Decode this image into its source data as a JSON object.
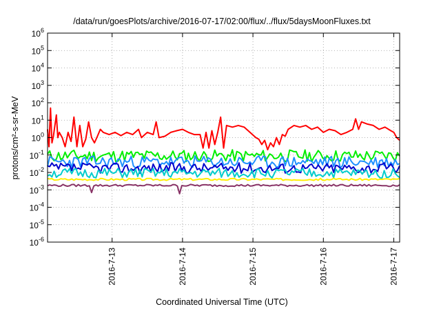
{
  "chart_data": {
    "type": "line",
    "title": "/data/run/goesPlots/archive/2016-07-17/02:00/flux/../flux/5daysMoonFluxes.txt",
    "xlabel": "Coordinated Universal Time (UTC)",
    "ylabel": "protons/cm²-s-sr-MeV",
    "x_start": "2016-07-12 02:00",
    "x_end": "2016-07-17 02:00",
    "x_ticks": [
      {
        "t": "2016-07-13 00:00",
        "label": "2016-7-13"
      },
      {
        "t": "2016-07-14 00:00",
        "label": "2016-7-14"
      },
      {
        "t": "2016-07-15 00:00",
        "label": "2016-7-15"
      },
      {
        "t": "2016-07-16 00:00",
        "label": "2016-7-16"
      },
      {
        "t": "2016-07-17 00:00",
        "label": "2016-7-17"
      }
    ],
    "y_scale": "log",
    "ylim": [
      1e-06,
      1000000
    ],
    "y_ticks": [
      {
        "base": "10",
        "exp": "-6",
        "value": 1e-06
      },
      {
        "base": "10",
        "exp": "-5",
        "value": 1e-05
      },
      {
        "base": "10",
        "exp": "-4",
        "value": 0.0001
      },
      {
        "base": "10",
        "exp": "-3",
        "value": 0.001
      },
      {
        "base": "10",
        "exp": "-2",
        "value": 0.01
      },
      {
        "base": "10",
        "exp": "-1",
        "value": 0.1
      },
      {
        "base": "10",
        "exp": "0",
        "value": 1
      },
      {
        "base": "10",
        "exp": "1",
        "value": 10
      },
      {
        "base": "10",
        "exp": "2",
        "value": 100
      },
      {
        "base": "10",
        "exp": "3",
        "value": 1000
      },
      {
        "base": "10",
        "exp": "4",
        "value": 10000
      },
      {
        "base": "10",
        "exp": "5",
        "value": 100000
      },
      {
        "base": "10",
        "exp": "6",
        "value": 1000000
      }
    ],
    "grid": true,
    "legend": "none",
    "series": [
      {
        "color": "#ff0000",
        "points": [
          [
            "2016-07-12 02:00",
            3.0
          ],
          [
            "2016-07-12 02:30",
            0.3
          ],
          [
            "2016-07-12 03:00",
            50
          ],
          [
            "2016-07-12 03:30",
            0.5
          ],
          [
            "2016-07-12 04:00",
            1.2
          ],
          [
            "2016-07-12 05:00",
            20
          ],
          [
            "2016-07-12 05:30",
            1.0
          ],
          [
            "2016-07-12 06:00",
            2.0
          ],
          [
            "2016-07-12 07:00",
            1.0
          ],
          [
            "2016-07-12 08:00",
            0.3
          ],
          [
            "2016-07-12 09:00",
            2.0
          ],
          [
            "2016-07-12 10:00",
            0.6
          ],
          [
            "2016-07-12 11:00",
            15
          ],
          [
            "2016-07-12 12:00",
            0.3
          ],
          [
            "2016-07-12 13:00",
            5
          ],
          [
            "2016-07-12 14:00",
            0.3
          ],
          [
            "2016-07-12 15:00",
            0.8
          ],
          [
            "2016-07-12 16:00",
            8
          ],
          [
            "2016-07-12 17:00",
            1.0
          ],
          [
            "2016-07-12 18:00",
            0.5
          ],
          [
            "2016-07-12 19:00",
            1.2
          ],
          [
            "2016-07-12 20:00",
            3.0
          ],
          [
            "2016-07-12 21:00",
            2.0
          ],
          [
            "2016-07-12 23:00",
            1.5
          ],
          [
            "2016-07-13 01:00",
            2.0
          ],
          [
            "2016-07-13 03:00",
            1.3
          ],
          [
            "2016-07-13 05:00",
            2.0
          ],
          [
            "2016-07-13 07:00",
            1.5
          ],
          [
            "2016-07-13 09:00",
            3.0
          ],
          [
            "2016-07-13 10:00",
            1.0
          ],
          [
            "2016-07-13 12:00",
            2.0
          ],
          [
            "2016-07-13 14:00",
            1.5
          ],
          [
            "2016-07-13 15:00",
            8
          ],
          [
            "2016-07-13 16:00",
            1.0
          ],
          [
            "2016-07-13 18:00",
            1.2
          ],
          [
            "2016-07-13 20:00",
            2.0
          ],
          [
            "2016-07-13 22:00",
            2.5
          ],
          [
            "2016-07-14 00:00",
            3.0
          ],
          [
            "2016-07-14 02:00",
            2.0
          ],
          [
            "2016-07-14 04:00",
            1.5
          ],
          [
            "2016-07-14 06:00",
            1.5
          ],
          [
            "2016-07-14 07:00",
            0.25
          ],
          [
            "2016-07-14 08:00",
            2.0
          ],
          [
            "2016-07-14 09:00",
            0.25
          ],
          [
            "2016-07-14 10:00",
            2.5
          ],
          [
            "2016-07-14 11:00",
            0.4
          ],
          [
            "2016-07-14 12:00",
            2.0
          ],
          [
            "2016-07-14 13:00",
            15
          ],
          [
            "2016-07-14 14:00",
            0.25
          ],
          [
            "2016-07-14 15:00",
            5
          ],
          [
            "2016-07-14 17:00",
            4.0
          ],
          [
            "2016-07-14 19:00",
            5.0
          ],
          [
            "2016-07-14 21:00",
            4.0
          ],
          [
            "2016-07-14 23:00",
            2.0
          ],
          [
            "2016-07-15 01:00",
            1.0
          ],
          [
            "2016-07-15 02:00",
            0.8
          ],
          [
            "2016-07-15 03:00",
            0.4
          ],
          [
            "2016-07-15 04:00",
            0.7
          ],
          [
            "2016-07-15 05:00",
            0.2
          ],
          [
            "2016-07-15 06:00",
            0.5
          ],
          [
            "2016-07-15 07:00",
            0.3
          ],
          [
            "2016-07-15 08:00",
            1.0
          ],
          [
            "2016-07-15 09:00",
            0.4
          ],
          [
            "2016-07-15 10:00",
            1.5
          ],
          [
            "2016-07-15 11:00",
            1.2
          ],
          [
            "2016-07-15 12:00",
            3.0
          ],
          [
            "2016-07-15 14:00",
            5.0
          ],
          [
            "2016-07-15 16:00",
            4.0
          ],
          [
            "2016-07-15 18:00",
            5.0
          ],
          [
            "2016-07-15 20:00",
            3.0
          ],
          [
            "2016-07-15 22:00",
            4.0
          ],
          [
            "2016-07-16 00:00",
            2.0
          ],
          [
            "2016-07-16 02:00",
            3.0
          ],
          [
            "2016-07-16 04:00",
            2.5
          ],
          [
            "2016-07-16 06:00",
            1.5
          ],
          [
            "2016-07-16 08:00",
            2.0
          ],
          [
            "2016-07-16 10:00",
            3.0
          ],
          [
            "2016-07-16 11:00",
            12
          ],
          [
            "2016-07-16 12:00",
            3.0
          ],
          [
            "2016-07-16 13:00",
            8
          ],
          [
            "2016-07-16 15:00",
            6.0
          ],
          [
            "2016-07-16 17:00",
            5.0
          ],
          [
            "2016-07-16 19:00",
            3.0
          ],
          [
            "2016-07-16 21:00",
            4.0
          ],
          [
            "2016-07-16 23:00",
            2.5
          ],
          [
            "2016-07-17 00:00",
            2.0
          ],
          [
            "2016-07-17 01:00",
            1.0
          ],
          [
            "2016-07-17 02:00",
            0.7
          ]
        ]
      },
      {
        "color": "#00ee00",
        "level": 0.09,
        "jitter": 0.35,
        "seed": 11
      },
      {
        "color": "#1e90ff",
        "level": 0.04,
        "jitter": 0.35,
        "seed": 23
      },
      {
        "color": "#0000cc",
        "level": 0.018,
        "jitter": 0.3,
        "seed": 37
      },
      {
        "color": "#00cccc",
        "level": 0.009,
        "jitter": 0.28,
        "seed": 51
      },
      {
        "color": "#ffee00",
        "level": 0.004,
        "jitter": 0.06,
        "seed": 67
      },
      {
        "color": "#883366",
        "level": 0.0018,
        "jitter": 0.06,
        "seed": 79,
        "dips": [
          [
            "2016-07-12 17:00",
            0.0007
          ],
          [
            "2016-07-13 23:00",
            0.0006
          ]
        ]
      }
    ]
  }
}
